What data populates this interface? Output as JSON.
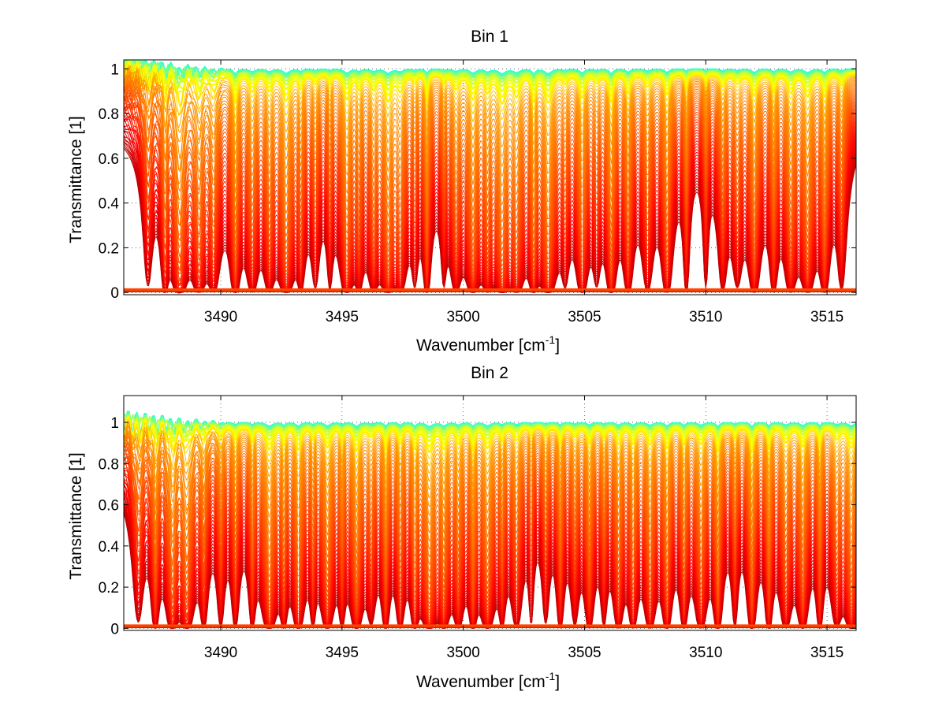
{
  "chart_data": [
    {
      "type": "line",
      "title": "Bin 1",
      "xlabel": "Wavenumber [cm",
      "xlabel_sup": "-1",
      "xlabel_suffix": "]",
      "ylabel": "Transmittance [1]",
      "xlim": [
        3486,
        3516.2
      ],
      "ylim": [
        -0.01,
        1.04
      ],
      "xticks": [
        3490,
        3495,
        3500,
        3505,
        3510,
        3515
      ],
      "yticks": [
        0,
        0.2,
        0.4,
        0.6,
        0.8,
        1
      ],
      "ytick_labels": [
        "0",
        "0.2",
        "0.4",
        "0.6",
        "0.8",
        "1"
      ],
      "grid": true,
      "line_centers": [
        3487.0,
        3487.7,
        3488.3,
        3489.1,
        3489.7,
        3490.6,
        3491.3,
        3492.0,
        3492.7,
        3493.3,
        3493.9,
        3494.5,
        3495.2,
        3495.7,
        3496.3,
        3496.9,
        3497.4,
        3498.0,
        3498.5,
        3499.2,
        3499.7,
        3500.4,
        3501.0,
        3501.6,
        3502.2,
        3502.9,
        3503.5,
        3504.2,
        3504.9,
        3505.5,
        3506.1,
        3506.8,
        3507.6,
        3508.4,
        3509.2,
        3510.0,
        3510.7,
        3511.3,
        3512.0,
        3512.8,
        3513.5,
        3514.2,
        3514.9,
        3515.6
      ],
      "series": {
        "count": 60,
        "dip_depth_min": 0.15,
        "dip_depth_max": 1.0,
        "colormap": "jet"
      }
    },
    {
      "type": "line",
      "title": "Bin 2",
      "xlabel": "Wavenumber [cm",
      "xlabel_sup": "-1",
      "xlabel_suffix": "]",
      "ylabel": "Transmittance [1]",
      "xlim": [
        3486,
        3516.2
      ],
      "ylim": [
        -0.01,
        1.13
      ],
      "xticks": [
        3490,
        3495,
        3500,
        3505,
        3510,
        3515
      ],
      "yticks": [
        0,
        0.2,
        0.4,
        0.6,
        0.8,
        1
      ],
      "ytick_labels": [
        "0",
        "0.2",
        "0.4",
        "0.6",
        "0.8",
        "1"
      ],
      "grid": true,
      "line_centers": [
        3486.6,
        3487.3,
        3488.0,
        3488.6,
        3489.3,
        3490.0,
        3490.6,
        3491.3,
        3492.0,
        3492.6,
        3493.2,
        3493.8,
        3494.4,
        3495.0,
        3495.6,
        3496.2,
        3496.8,
        3497.4,
        3498.0,
        3498.6,
        3499.2,
        3499.8,
        3500.4,
        3501.0,
        3501.6,
        3502.2,
        3502.8,
        3503.4,
        3504.0,
        3504.6,
        3505.2,
        3505.8,
        3506.4,
        3507.0,
        3507.7,
        3508.4,
        3509.1,
        3509.8,
        3510.5,
        3511.2,
        3511.9,
        3512.6,
        3513.3,
        3514.0,
        3514.7,
        3515.4,
        3516.0
      ],
      "series": {
        "count": 60,
        "dip_depth_min": 0.15,
        "dip_depth_max": 1.0,
        "colormap": "jet"
      }
    }
  ]
}
